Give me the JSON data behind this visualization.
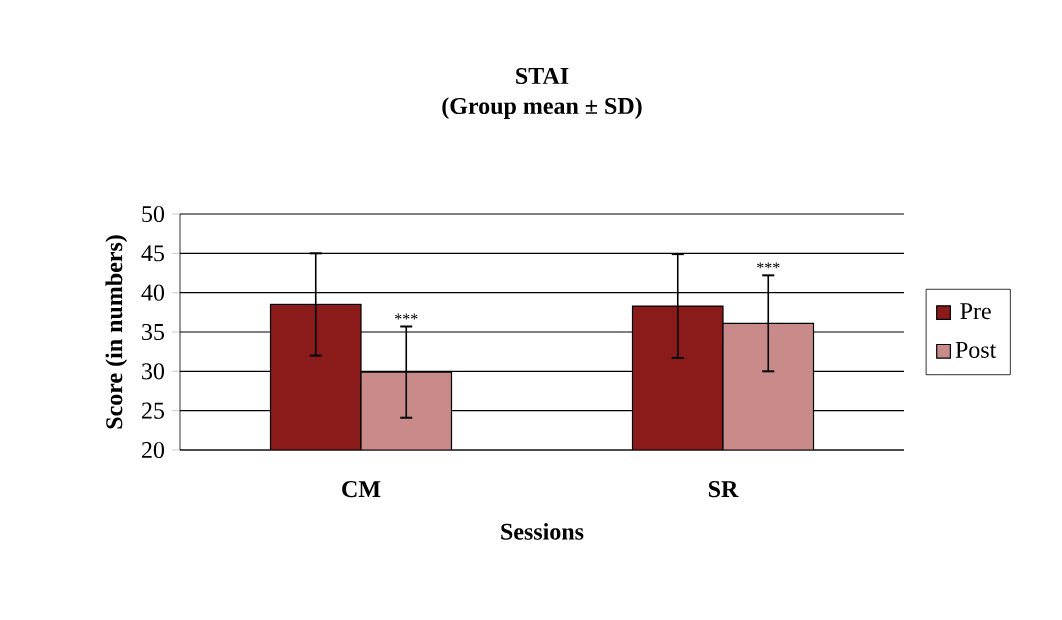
{
  "chart_data": {
    "type": "bar",
    "title": "STAI",
    "subtitle": "(Group mean ± SD)",
    "xlabel": "Sessions",
    "ylabel": "Score (in numbers)",
    "categories": [
      "CM",
      "SR"
    ],
    "series": [
      {
        "name": "Pre",
        "color": "#8b1a1a",
        "values": [
          38.5,
          38.3
        ],
        "errors": [
          6.5,
          6.6
        ]
      },
      {
        "name": "Post",
        "color": "#c98a8a",
        "values": [
          29.9,
          36.1
        ],
        "errors": [
          5.8,
          6.1
        ]
      }
    ],
    "ylim": [
      20,
      50
    ],
    "yticks": [
      20,
      25,
      30,
      35,
      40,
      45,
      50
    ],
    "grid": "y",
    "legend": "right",
    "annotations": [
      "***",
      "***"
    ]
  }
}
